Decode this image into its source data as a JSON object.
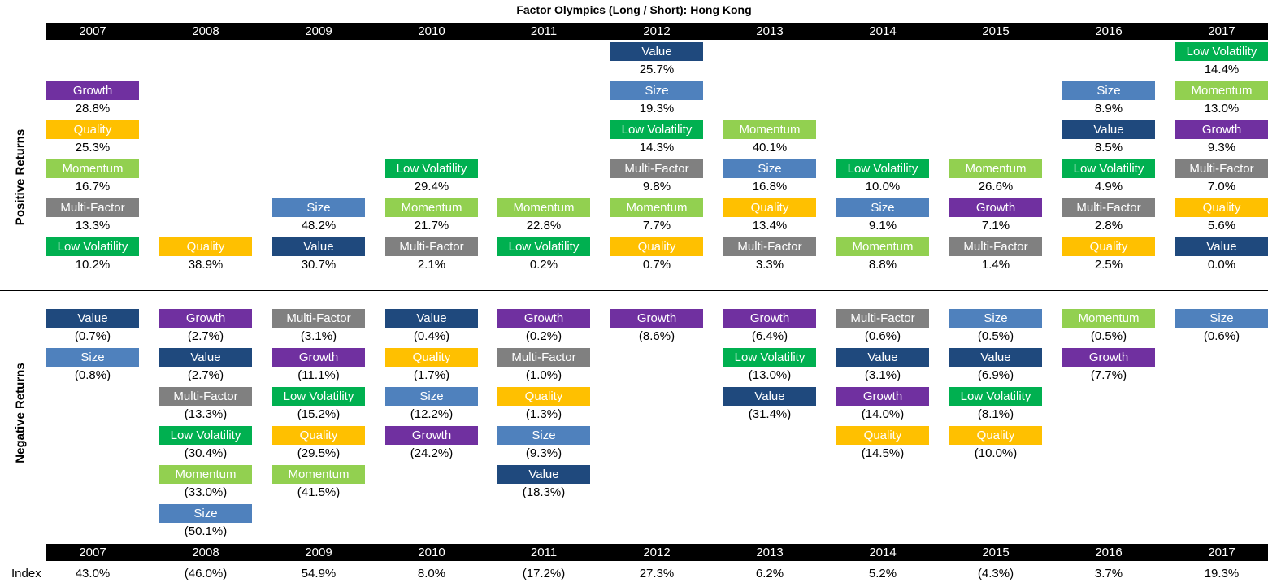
{
  "title": "Factor Olympics (Long / Short): Hong Kong",
  "positive_label": "Positive Returns",
  "negative_label": "Negative Returns",
  "index_label": "Index",
  "years": [
    "2007",
    "2008",
    "2009",
    "2010",
    "2011",
    "2012",
    "2013",
    "2014",
    "2015",
    "2016",
    "2017"
  ],
  "colors": {
    "Value": "#1f497d",
    "Size": "#4f81bd",
    "Growth": "#7030a0",
    "Quality": "#ffc000",
    "Momentum": "#92d050",
    "Multi-Factor": "#808080",
    "Low Volatility": "#00b050"
  },
  "chart_data": {
    "type": "table",
    "title": "Factor Olympics (Long / Short): Hong Kong",
    "years": [
      "2007",
      "2008",
      "2009",
      "2010",
      "2011",
      "2012",
      "2013",
      "2014",
      "2015",
      "2016",
      "2017"
    ],
    "positive": [
      [
        {
          "factor": "Growth",
          "label": "28.8%"
        },
        {
          "factor": "Quality",
          "label": "25.3%"
        },
        {
          "factor": "Momentum",
          "label": "16.7%"
        },
        {
          "factor": "Multi-Factor",
          "label": "13.3%"
        },
        {
          "factor": "Low Volatility",
          "label": "10.2%"
        }
      ],
      [
        {
          "factor": "Quality",
          "label": "38.9%"
        }
      ],
      [
        {
          "factor": "Size",
          "label": "48.2%"
        },
        {
          "factor": "Value",
          "label": "30.7%"
        }
      ],
      [
        {
          "factor": "Low Volatility",
          "label": "29.4%"
        },
        {
          "factor": "Momentum",
          "label": "21.7%"
        },
        {
          "factor": "Multi-Factor",
          "label": "2.1%"
        }
      ],
      [
        {
          "factor": "Momentum",
          "label": "22.8%"
        },
        {
          "factor": "Low Volatility",
          "label": "0.2%"
        }
      ],
      [
        {
          "factor": "Value",
          "label": "25.7%"
        },
        {
          "factor": "Size",
          "label": "19.3%"
        },
        {
          "factor": "Low Volatility",
          "label": "14.3%"
        },
        {
          "factor": "Multi-Factor",
          "label": "9.8%"
        },
        {
          "factor": "Momentum",
          "label": "7.7%"
        },
        {
          "factor": "Quality",
          "label": "0.7%"
        }
      ],
      [
        {
          "factor": "Momentum",
          "label": "40.1%"
        },
        {
          "factor": "Size",
          "label": "16.8%"
        },
        {
          "factor": "Quality",
          "label": "13.4%"
        },
        {
          "factor": "Multi-Factor",
          "label": "3.3%"
        }
      ],
      [
        {
          "factor": "Low Volatility",
          "label": "10.0%"
        },
        {
          "factor": "Size",
          "label": "9.1%"
        },
        {
          "factor": "Momentum",
          "label": "8.8%"
        }
      ],
      [
        {
          "factor": "Momentum",
          "label": "26.6%"
        },
        {
          "factor": "Growth",
          "label": "7.1%"
        },
        {
          "factor": "Multi-Factor",
          "label": "1.4%"
        }
      ],
      [
        {
          "factor": "Size",
          "label": "8.9%"
        },
        {
          "factor": "Value",
          "label": "8.5%"
        },
        {
          "factor": "Low Volatility",
          "label": "4.9%"
        },
        {
          "factor": "Multi-Factor",
          "label": "2.8%"
        },
        {
          "factor": "Quality",
          "label": "2.5%"
        }
      ],
      [
        {
          "factor": "Low Volatility",
          "label": "14.4%"
        },
        {
          "factor": "Momentum",
          "label": "13.0%"
        },
        {
          "factor": "Growth",
          "label": "9.3%"
        },
        {
          "factor": "Multi-Factor",
          "label": "7.0%"
        },
        {
          "factor": "Quality",
          "label": "5.6%"
        },
        {
          "factor": "Value",
          "label": "0.0%"
        }
      ]
    ],
    "negative": [
      [
        {
          "factor": "Value",
          "label": "(0.7%)"
        },
        {
          "factor": "Size",
          "label": "(0.8%)"
        }
      ],
      [
        {
          "factor": "Growth",
          "label": "(2.7%)"
        },
        {
          "factor": "Value",
          "label": "(2.7%)"
        },
        {
          "factor": "Multi-Factor",
          "label": "(13.3%)"
        },
        {
          "factor": "Low Volatility",
          "label": "(30.4%)"
        },
        {
          "factor": "Momentum",
          "label": "(33.0%)"
        },
        {
          "factor": "Size",
          "label": "(50.1%)"
        }
      ],
      [
        {
          "factor": "Multi-Factor",
          "label": "(3.1%)"
        },
        {
          "factor": "Growth",
          "label": "(11.1%)"
        },
        {
          "factor": "Low Volatility",
          "label": "(15.2%)"
        },
        {
          "factor": "Quality",
          "label": "(29.5%)"
        },
        {
          "factor": "Momentum",
          "label": "(41.5%)"
        }
      ],
      [
        {
          "factor": "Value",
          "label": "(0.4%)"
        },
        {
          "factor": "Quality",
          "label": "(1.7%)"
        },
        {
          "factor": "Size",
          "label": "(12.2%)"
        },
        {
          "factor": "Growth",
          "label": "(24.2%)"
        }
      ],
      [
        {
          "factor": "Growth",
          "label": "(0.2%)"
        },
        {
          "factor": "Multi-Factor",
          "label": "(1.0%)"
        },
        {
          "factor": "Quality",
          "label": "(1.3%)"
        },
        {
          "factor": "Size",
          "label": "(9.3%)"
        },
        {
          "factor": "Value",
          "label": "(18.3%)"
        }
      ],
      [
        {
          "factor": "Growth",
          "label": "(8.6%)"
        }
      ],
      [
        {
          "factor": "Growth",
          "label": "(6.4%)"
        },
        {
          "factor": "Low Volatility",
          "label": "(13.0%)"
        },
        {
          "factor": "Value",
          "label": "(31.4%)"
        }
      ],
      [
        {
          "factor": "Multi-Factor",
          "label": "(0.6%)"
        },
        {
          "factor": "Value",
          "label": "(3.1%)"
        },
        {
          "factor": "Growth",
          "label": "(14.0%)"
        },
        {
          "factor": "Quality",
          "label": "(14.5%)"
        }
      ],
      [
        {
          "factor": "Size",
          "label": "(0.5%)"
        },
        {
          "factor": "Value",
          "label": "(6.9%)"
        },
        {
          "factor": "Low Volatility",
          "label": "(8.1%)"
        },
        {
          "factor": "Quality",
          "label": "(10.0%)"
        }
      ],
      [
        {
          "factor": "Momentum",
          "label": "(0.5%)"
        },
        {
          "factor": "Growth",
          "label": "(7.7%)"
        }
      ],
      [
        {
          "factor": "Size",
          "label": "(0.6%)"
        }
      ]
    ],
    "index": [
      "43.0%",
      "(46.0%)",
      "54.9%",
      "8.0%",
      "(17.2%)",
      "27.3%",
      "6.2%",
      "5.2%",
      "(4.3%)",
      "3.7%",
      "19.3%"
    ]
  }
}
